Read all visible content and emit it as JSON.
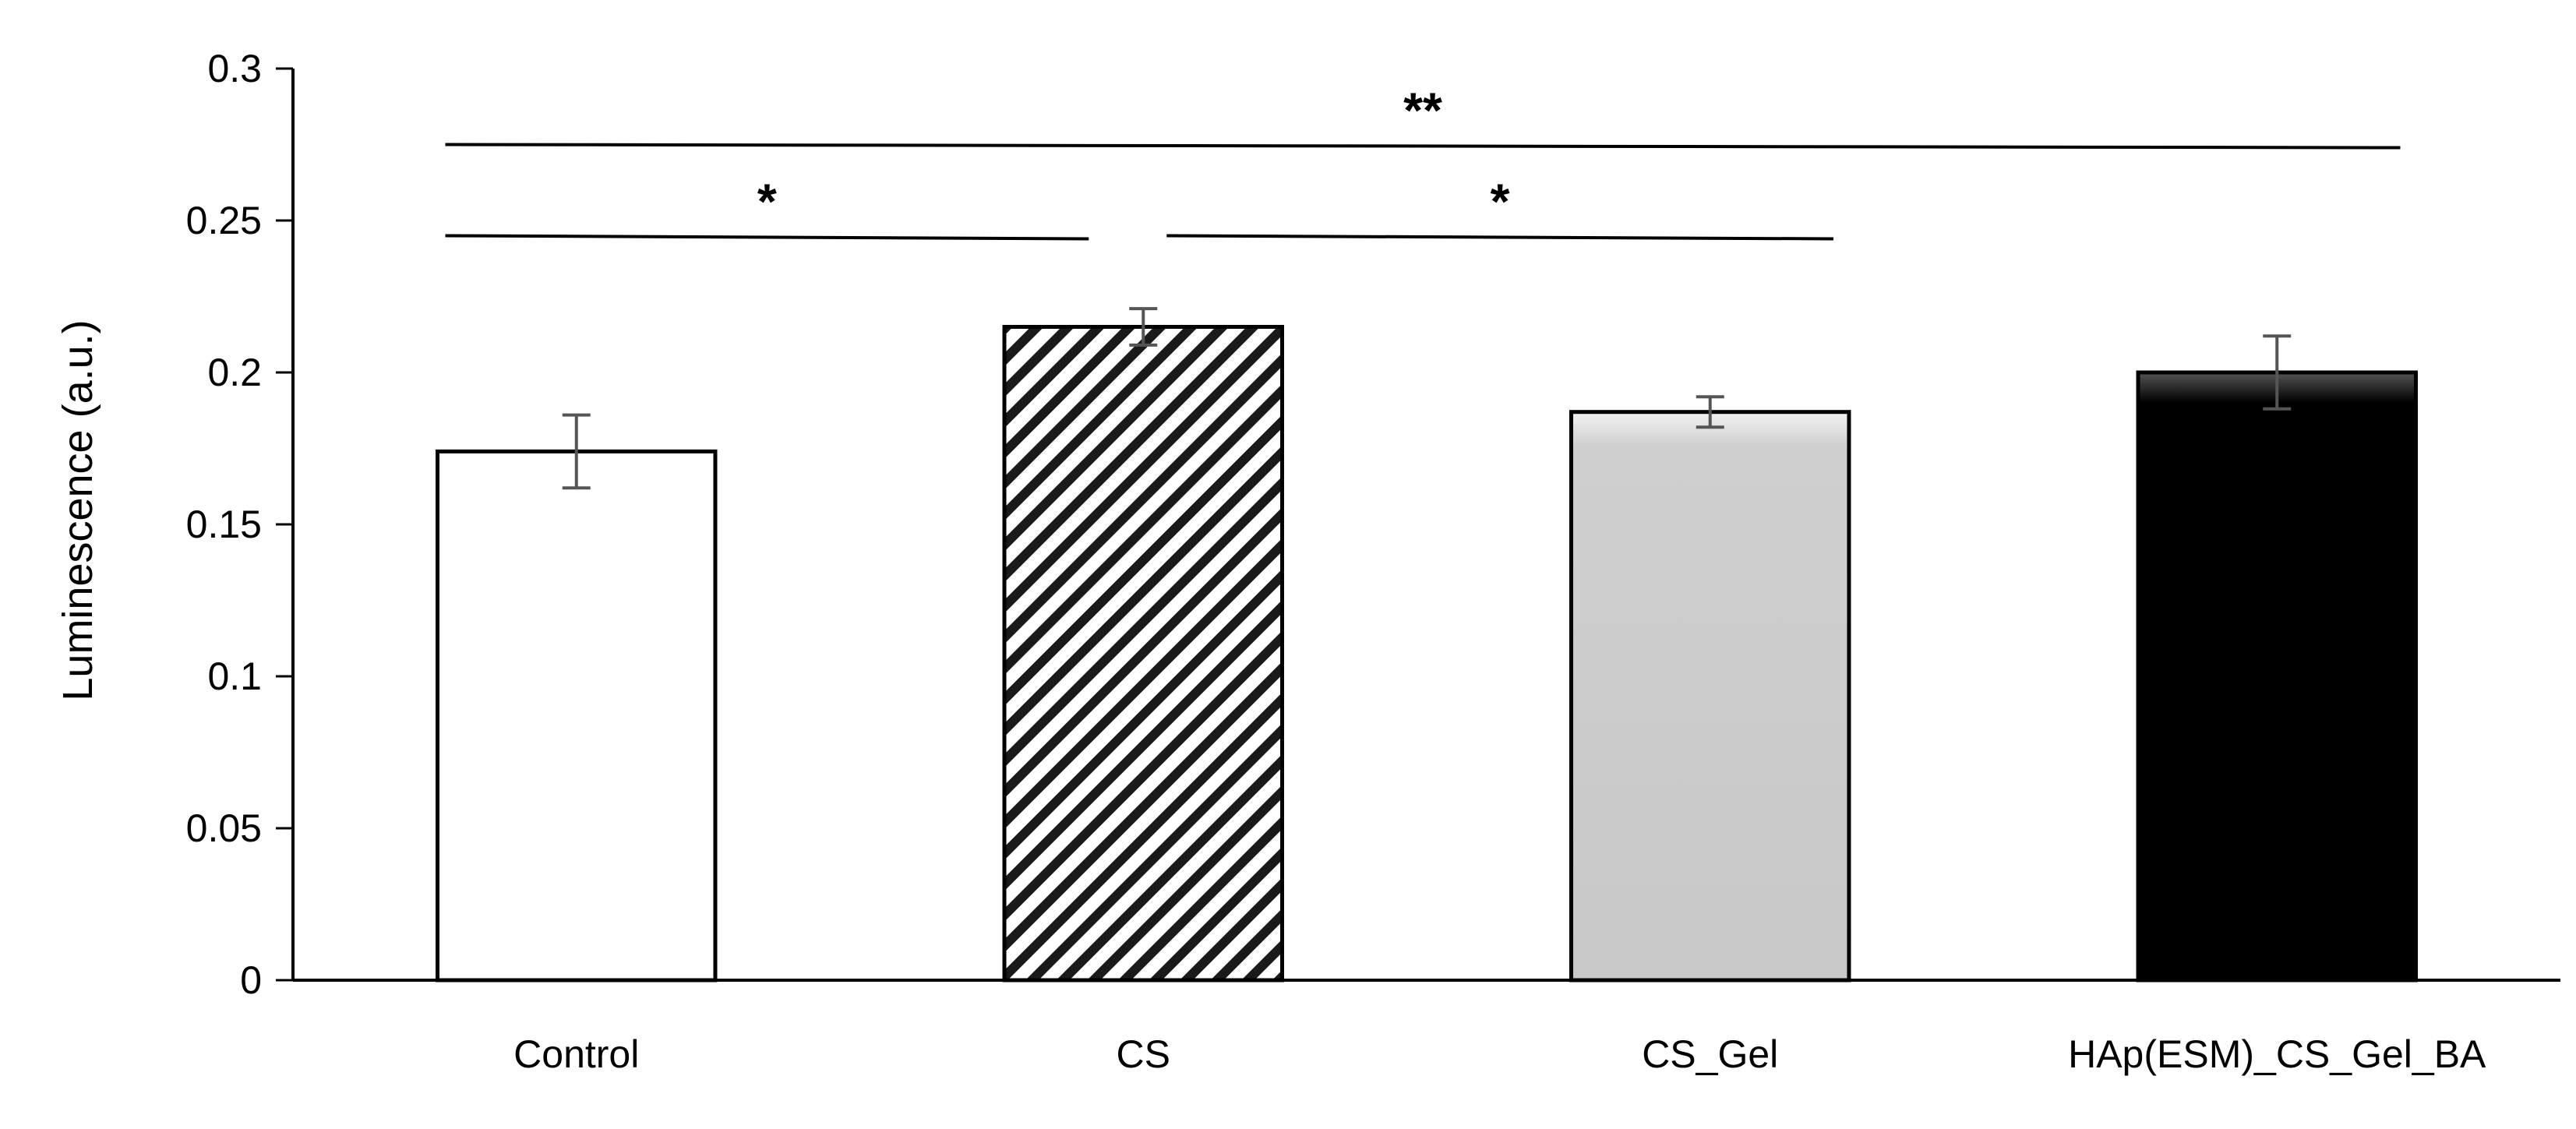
{
  "chart_data": {
    "type": "bar",
    "title": "",
    "xlabel": "",
    "ylabel": "Luminescence (a.u.)",
    "ylim": [
      0,
      0.3
    ],
    "yticks": [
      "0",
      "0.05",
      "0.1",
      "0.15",
      "0.2",
      "0.25",
      "0.3"
    ],
    "yticks_values": [
      0,
      0.05,
      0.1,
      0.15,
      0.2,
      0.25,
      0.3
    ],
    "grid": false,
    "categories": [
      "Control",
      "CS",
      "CS_Gel",
      "HAp(ESM)_CS_Gel_BA"
    ],
    "values": [
      0.174,
      0.215,
      0.187,
      0.2
    ],
    "errors": [
      0.012,
      0.006,
      0.005,
      0.012
    ],
    "fills": [
      "white",
      "diagonal-stripes",
      "light-gray",
      "black"
    ],
    "colors": {
      "axis": "#000000",
      "error_bar": "#555555",
      "gray_fill": "#cfcfcf",
      "black_fill": "#000000"
    },
    "significance": [
      {
        "from": 0,
        "to": 1,
        "label": "*",
        "y": 0.245
      },
      {
        "from": 1,
        "to": 2,
        "label": "*",
        "y": 0.245
      },
      {
        "from": 0,
        "to": 3,
        "label": "**",
        "y": 0.275
      }
    ]
  }
}
